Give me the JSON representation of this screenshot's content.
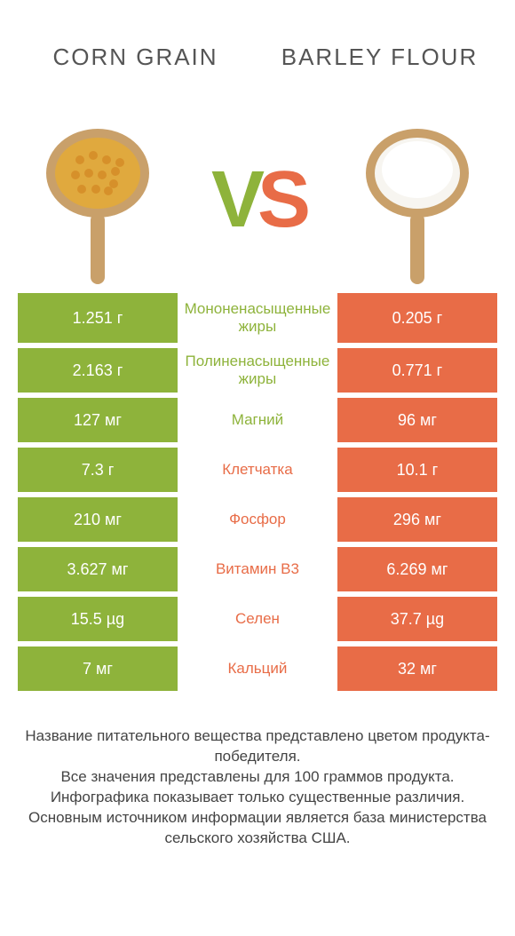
{
  "header": {
    "left_title": "CORN GRAIN",
    "right_title": "BARLEY FLOUR"
  },
  "vs": {
    "v": "V",
    "s": "S"
  },
  "colors": {
    "green": "#8eb33b",
    "orange": "#e86c47",
    "spoon_wood": "#c9a06a",
    "corn_fill": "#e0a93e",
    "flour_fill": "#f7f5f0",
    "text_gray": "#555555"
  },
  "rows": [
    {
      "left": "1.251 г",
      "mid": "Мононенасыщенные жиры",
      "right": "0.205 г",
      "winner": "green"
    },
    {
      "left": "2.163 г",
      "mid": "Полиненасыщенные жиры",
      "right": "0.771 г",
      "winner": "green"
    },
    {
      "left": "127 мг",
      "mid": "Магний",
      "right": "96 мг",
      "winner": "green"
    },
    {
      "left": "7.3 г",
      "mid": "Клетчатка",
      "right": "10.1 г",
      "winner": "orange"
    },
    {
      "left": "210 мг",
      "mid": "Фосфор",
      "right": "296 мг",
      "winner": "orange"
    },
    {
      "left": "3.627 мг",
      "mid": "Витамин B3",
      "right": "6.269 мг",
      "winner": "orange"
    },
    {
      "left": "15.5 µg",
      "mid": "Селен",
      "right": "37.7 µg",
      "winner": "orange"
    },
    {
      "left": "7 мг",
      "mid": "Кальций",
      "right": "32 мг",
      "winner": "orange"
    }
  ],
  "footer": {
    "line1": "Название питательного вещества представлено цветом продукта-победителя.",
    "line2": "Все значения представлены для 100 граммов продукта.",
    "line3": "Инфографика показывает только существенные различия.",
    "line4": "Основным источником информации является база министерства сельского хозяйства США."
  }
}
